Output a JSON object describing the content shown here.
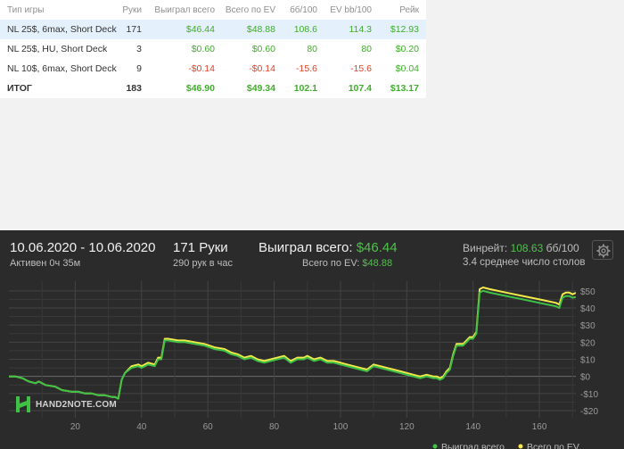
{
  "stats_table": {
    "headers": [
      "Тип игры",
      "Руки",
      "Выиграл всего",
      "Всего по EV",
      "бб/100",
      "EV bb/100",
      "Рейк"
    ],
    "rows": [
      {
        "game": "NL 25$, 6max, Short Deck",
        "hands": "171",
        "won": "$46.44",
        "ev": "$48.88",
        "bb100": "108.6",
        "evbb100": "114.3",
        "rake": "$12.93",
        "highlighted": true
      },
      {
        "game": "NL 25$, HU, Short Deck",
        "hands": "3",
        "won": "$0.60",
        "ev": "$0.60",
        "bb100": "80",
        "evbb100": "80",
        "rake": "$0.20",
        "highlighted": false
      },
      {
        "game": "NL 10$, 6max, Short Deck",
        "hands": "9",
        "won": "-$0.14",
        "ev": "-$0.14",
        "bb100": "-15.6",
        "evbb100": "-15.6",
        "rake": "$0.04",
        "highlighted": false
      }
    ],
    "total": {
      "game": "ИТОГ",
      "hands": "183",
      "won": "$46.90",
      "ev": "$49.34",
      "bb100": "102.1",
      "evbb100": "107.4",
      "rake": "$13.17"
    }
  },
  "panel": {
    "date_range": "10.06.2020 - 10.06.2020",
    "active_time": "Активен 0ч 35м",
    "hands": "171 Руки",
    "hands_rate": "290 рук в час",
    "won_label": "Выиграл всего:",
    "won_value": "$46.44",
    "ev_label": "Всего по EV:",
    "ev_value": "$48.88",
    "winrate_label": "Винрейт:",
    "winrate_value": "108.63",
    "winrate_unit": "бб/100",
    "avg_tables": "3.4 среднее число столов",
    "logo_text": "HAND2NOTE.COM",
    "settings_icon": "gear-icon"
  },
  "colors": {
    "won_line": "#3fc146",
    "ev_line": "#f2e94a",
    "positive": "#3fae2a",
    "negative": "#e0422a",
    "highlight_row": "#e4f0fb"
  },
  "chart_data": {
    "type": "line",
    "xlim": [
      0,
      171
    ],
    "ylim": [
      -20,
      52
    ],
    "x_ticks": [
      20,
      40,
      60,
      80,
      100,
      120,
      140,
      160
    ],
    "y_ticks": [
      -20,
      -10,
      0,
      10,
      20,
      30,
      40,
      50
    ],
    "y_tick_labels": [
      "-$20",
      "-$10",
      "$0",
      "$10",
      "$20",
      "$30",
      "$40",
      "$50"
    ],
    "grid": true,
    "legend": "bottom-right",
    "series": [
      {
        "name": "Выиграл всего",
        "color": "#3fc146",
        "x": [
          0,
          2,
          4,
          6,
          8,
          9,
          11,
          14,
          16,
          19,
          21,
          23,
          25,
          27,
          29,
          31,
          32,
          33,
          34,
          35,
          37,
          39,
          40,
          42,
          44,
          45,
          46,
          47,
          48,
          51,
          53,
          56,
          59,
          62,
          65,
          67,
          69,
          71,
          73,
          75,
          77,
          79,
          81,
          83,
          85,
          87,
          89,
          90,
          92,
          94,
          96,
          98,
          100,
          102,
          104,
          106,
          108,
          110,
          112,
          114,
          116,
          118,
          120,
          122,
          124,
          126,
          128,
          129,
          130,
          131,
          132,
          133,
          134,
          135,
          137,
          138,
          139,
          140,
          141,
          142,
          143,
          145,
          150,
          155,
          160,
          165,
          166,
          167,
          168,
          169,
          170,
          171
        ],
        "y": [
          0,
          0,
          -1,
          -3,
          -4,
          -3,
          -5,
          -6,
          -8,
          -9,
          -9,
          -10,
          -10,
          -11,
          -11,
          -12,
          -12,
          -13,
          -2,
          2,
          5,
          6,
          5,
          7,
          6,
          10,
          10,
          21,
          21,
          20,
          20,
          19,
          18,
          16,
          15,
          13,
          12,
          10,
          11,
          9,
          8,
          9,
          10,
          11,
          8,
          10,
          10,
          11,
          9,
          10,
          8,
          8,
          7,
          6,
          5,
          4,
          3,
          6,
          5,
          4,
          3,
          2,
          1,
          0,
          -1,
          0,
          -1,
          -1,
          -2,
          -1,
          2,
          4,
          12,
          18,
          18,
          20,
          22,
          22,
          25,
          49,
          50,
          49,
          47,
          45,
          43,
          41,
          40,
          46,
          47,
          47,
          46,
          46.44
        ]
      },
      {
        "name": "Всего по EV",
        "color": "#f2e94a",
        "x": [
          0,
          2,
          4,
          6,
          8,
          9,
          11,
          14,
          16,
          19,
          21,
          23,
          25,
          27,
          29,
          31,
          32,
          33,
          34,
          35,
          37,
          39,
          40,
          42,
          44,
          45,
          46,
          47,
          48,
          51,
          53,
          56,
          59,
          62,
          65,
          67,
          69,
          71,
          73,
          75,
          77,
          79,
          81,
          83,
          85,
          87,
          89,
          90,
          92,
          94,
          96,
          98,
          100,
          102,
          104,
          106,
          108,
          110,
          112,
          114,
          116,
          118,
          120,
          122,
          124,
          126,
          128,
          129,
          130,
          131,
          132,
          133,
          134,
          135,
          137,
          138,
          139,
          140,
          141,
          142,
          143,
          145,
          150,
          155,
          160,
          165,
          166,
          167,
          168,
          169,
          170,
          171
        ],
        "y": [
          0,
          0,
          -1,
          -3,
          -4,
          -3,
          -5,
          -6,
          -8,
          -9,
          -9,
          -10,
          -10,
          -11,
          -11,
          -12,
          -12,
          -13,
          -2,
          2,
          6,
          7,
          6,
          8,
          7,
          11,
          11,
          22,
          22,
          21,
          21,
          20,
          19,
          17,
          16,
          14,
          13,
          11,
          12,
          10,
          9,
          10,
          11,
          12,
          9,
          11,
          11,
          12,
          10,
          11,
          9,
          9,
          8,
          7,
          6,
          5,
          4,
          7,
          6,
          5,
          4,
          3,
          2,
          1,
          0,
          1,
          0,
          0,
          -1,
          0,
          3,
          5,
          13,
          19,
          19,
          21,
          23,
          23,
          26,
          51,
          52,
          51,
          49,
          47,
          45,
          43,
          42,
          48,
          49,
          49,
          48,
          48.88
        ]
      }
    ]
  }
}
